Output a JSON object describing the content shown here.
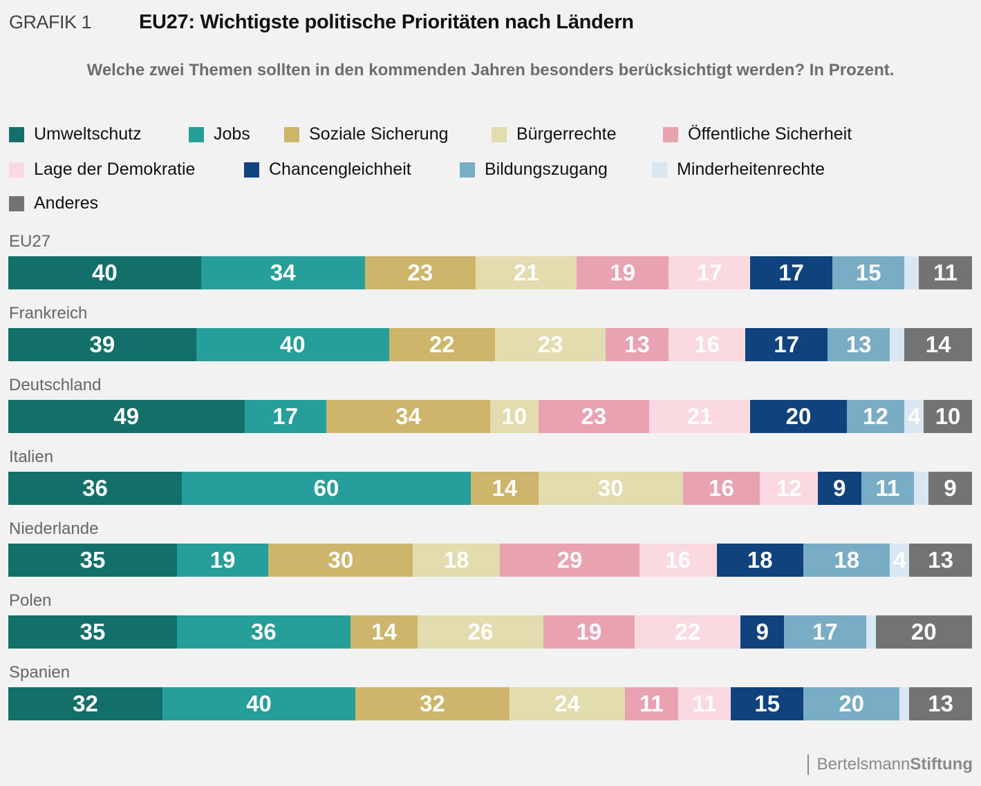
{
  "header": {
    "grafik_label": "GRAFIK 1",
    "title": "EU27: Wichtigste politische Prioritäten nach Ländern",
    "subtitle": "Welche zwei Themen sollten in den kommenden Jahren besonders berücksichtigt werden? In Prozent."
  },
  "footer": {
    "brand_light": "Bertelsmann",
    "brand_bold": "Stiftung"
  },
  "chart_data": {
    "type": "bar",
    "orientation": "horizontal",
    "stacked": true,
    "title": "EU27: Wichtigste politische Prioritäten nach Ländern",
    "subtitle": "Welche zwei Themen sollten in den kommenden Jahren besonders berücksichtigt werden? In Prozent.",
    "xlabel": "",
    "ylabel": "",
    "unit": "%",
    "legend_position": "top",
    "grid": false,
    "categories": [
      "EU27",
      "Frankreich",
      "Deutschland",
      "Italien",
      "Niederlande",
      "Polen",
      "Spanien"
    ],
    "series": [
      {
        "name": "Umweltschutz",
        "color": "#136f69",
        "label_color": "#ffffff",
        "values": [
          40,
          39,
          49,
          36,
          35,
          35,
          32
        ]
      },
      {
        "name": "Jobs",
        "color": "#269e99",
        "label_color": "#ffffff",
        "values": [
          34,
          40,
          17,
          60,
          19,
          36,
          40
        ]
      },
      {
        "name": "Soziale Sicherung",
        "color": "#cdb66b",
        "label_color": "#ffffff",
        "values": [
          23,
          22,
          34,
          14,
          30,
          14,
          32
        ]
      },
      {
        "name": "Bürgerrechte",
        "color": "#e3dcae",
        "label_color": "#ffffff",
        "values": [
          21,
          23,
          10,
          30,
          18,
          26,
          24
        ]
      },
      {
        "name": "Öffentliche Sicherheit",
        "color": "#e8a2b0",
        "label_color": "#ffffff",
        "values": [
          19,
          13,
          23,
          16,
          29,
          19,
          11
        ]
      },
      {
        "name": "Lage der Demokratie",
        "color": "#fad9e1",
        "label_color": "#ffffff",
        "values": [
          17,
          16,
          21,
          12,
          16,
          22,
          11
        ]
      },
      {
        "name": "Chancengleichheit",
        "color": "#10437d",
        "label_color": "#ffffff",
        "values": [
          17,
          17,
          20,
          9,
          18,
          9,
          15
        ]
      },
      {
        "name": "Bildungszugang",
        "color": "#79adc6",
        "label_color": "#ffffff",
        "values": [
          15,
          13,
          12,
          11,
          18,
          17,
          20
        ]
      },
      {
        "name": "Minderheitenrechte",
        "color": "#d8e7f2",
        "label_color": "#ffffff",
        "values": [
          3,
          3,
          4,
          3,
          4,
          2,
          2
        ],
        "labeled": [
          false,
          false,
          true,
          false,
          true,
          false,
          false
        ]
      },
      {
        "name": "Anderes",
        "color": "#737373",
        "label_color": "#ffffff",
        "values": [
          11,
          14,
          10,
          9,
          13,
          20,
          13
        ]
      }
    ]
  }
}
